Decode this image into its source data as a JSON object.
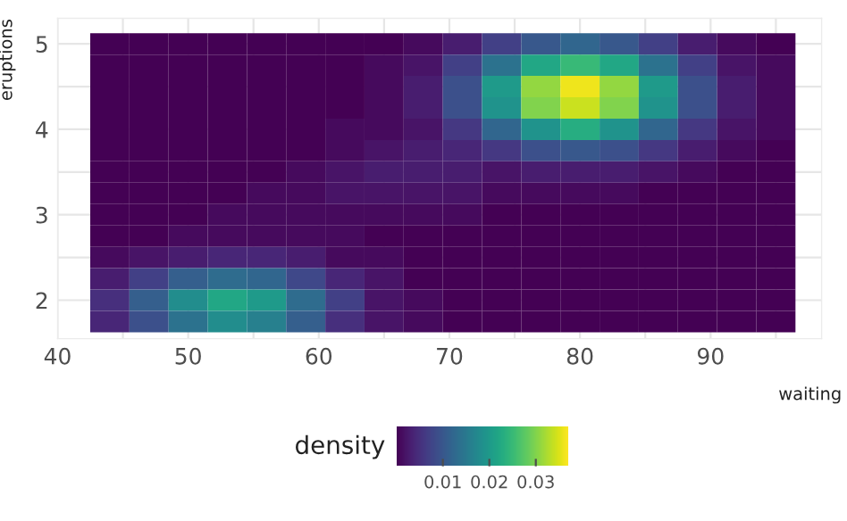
{
  "chart_data": {
    "type": "heatmap",
    "xlabel": "waiting",
    "ylabel": "eruptions",
    "clabel": "density",
    "x": [
      44,
      47,
      50,
      53,
      56,
      59,
      62,
      65,
      68,
      71,
      74,
      77,
      80,
      83,
      86,
      89,
      92,
      95
    ],
    "y": [
      5.0,
      4.75,
      4.5,
      4.25,
      4.0,
      3.75,
      3.5,
      3.25,
      3.0,
      2.75,
      2.5,
      2.25,
      2.0,
      1.75
    ],
    "cells": [
      [
        0,
        0,
        0,
        0,
        0,
        0,
        0,
        0,
        0.001,
        0.003,
        0.007,
        0.01,
        0.012,
        0.01,
        0.007,
        0.003,
        0.001,
        0
      ],
      [
        0,
        0,
        0,
        0,
        0,
        0,
        0,
        0.001,
        0.002,
        0.007,
        0.014,
        0.022,
        0.025,
        0.022,
        0.014,
        0.007,
        0.002,
        0.001
      ],
      [
        0,
        0,
        0,
        0,
        0,
        0,
        0,
        0.001,
        0.003,
        0.009,
        0.02,
        0.031,
        0.036,
        0.031,
        0.02,
        0.009,
        0.003,
        0.001
      ],
      [
        0,
        0,
        0,
        0,
        0,
        0,
        0,
        0.001,
        0.003,
        0.009,
        0.019,
        0.03,
        0.034,
        0.03,
        0.019,
        0.009,
        0.003,
        0.001
      ],
      [
        0,
        0,
        0,
        0,
        0,
        0,
        0.001,
        0.001,
        0.002,
        0.006,
        0.012,
        0.019,
        0.023,
        0.019,
        0.012,
        0.006,
        0.002,
        0.001
      ],
      [
        0,
        0,
        0,
        0,
        0,
        0,
        0.001,
        0.002,
        0.003,
        0.004,
        0.006,
        0.009,
        0.01,
        0.009,
        0.006,
        0.003,
        0.001,
        0
      ],
      [
        0,
        0,
        0,
        0,
        0,
        0.001,
        0.002,
        0.003,
        0.003,
        0.003,
        0.002,
        0.003,
        0.003,
        0.003,
        0.002,
        0.001,
        0,
        0
      ],
      [
        0,
        0,
        0,
        0,
        0.001,
        0.001,
        0.002,
        0.002,
        0.002,
        0.002,
        0.001,
        0.001,
        0.001,
        0.001,
        0,
        0,
        0,
        0
      ],
      [
        0,
        0,
        0,
        0.001,
        0.001,
        0.001,
        0.001,
        0.001,
        0.001,
        0.001,
        0,
        0,
        0,
        0,
        0,
        0,
        0,
        0
      ],
      [
        0,
        0,
        0.001,
        0.001,
        0.001,
        0.001,
        0.001,
        0,
        0,
        0,
        0,
        0,
        0,
        0,
        0,
        0,
        0,
        0
      ],
      [
        0.001,
        0.002,
        0.003,
        0.004,
        0.004,
        0.003,
        0.001,
        0.001,
        0,
        0,
        0,
        0,
        0,
        0,
        0,
        0,
        0,
        0
      ],
      [
        0.003,
        0.007,
        0.011,
        0.013,
        0.012,
        0.008,
        0.004,
        0.002,
        0,
        0,
        0,
        0,
        0,
        0,
        0,
        0,
        0,
        0
      ],
      [
        0.005,
        0.011,
        0.018,
        0.022,
        0.02,
        0.013,
        0.007,
        0.002,
        0.001,
        0,
        0,
        0,
        0,
        0,
        0,
        0,
        0,
        0
      ],
      [
        0.004,
        0.009,
        0.014,
        0.018,
        0.016,
        0.011,
        0.005,
        0.002,
        0.001,
        0,
        0,
        0,
        0,
        0,
        0,
        0,
        0,
        0
      ]
    ],
    "xlim": [
      40,
      98.5
    ],
    "ylim": [
      1.55,
      5.3
    ],
    "xticks": [
      40,
      50,
      60,
      70,
      80,
      90
    ],
    "yticks": [
      2,
      3,
      4,
      5
    ],
    "clim": [
      0,
      0.037
    ],
    "cticks": [
      0.01,
      0.02,
      0.03
    ],
    "grid": true
  }
}
